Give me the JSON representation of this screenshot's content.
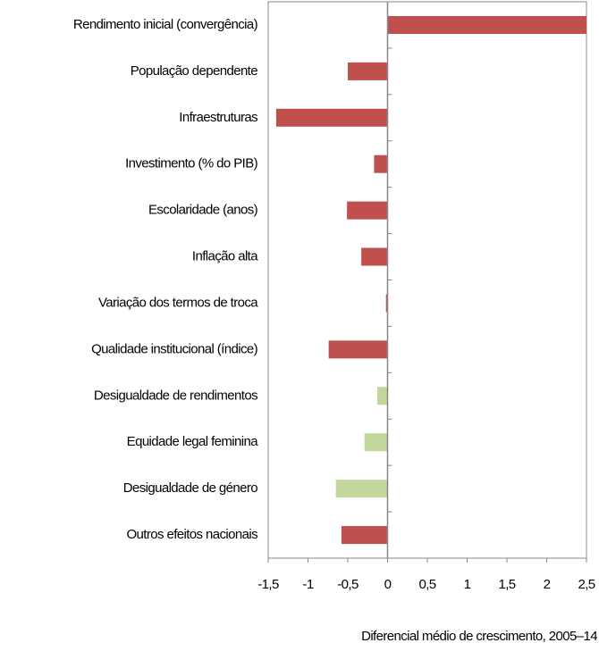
{
  "chart_data": {
    "type": "barh",
    "categories": [
      "Rendimento inicial (convergência)",
      "População dependente",
      "Infraestruturas",
      "Investimento (% do PIB)",
      "Escolaridade (anos)",
      "Inflação alta",
      "Variação dos termos de troca",
      "Qualidade institucional (índice)",
      "Desigualdade de rendimentos",
      "Equidade legal feminina",
      "Desigualdade de género",
      "Outros efeitos nacionais"
    ],
    "values": [
      2.5,
      -0.5,
      -1.4,
      -0.17,
      -0.51,
      -0.33,
      -0.02,
      -0.74,
      -0.13,
      -0.29,
      -0.65,
      -0.58
    ],
    "colors": [
      "#c0504d",
      "#c0504d",
      "#c0504d",
      "#c0504d",
      "#c0504d",
      "#c0504d",
      "#c0504d",
      "#c0504d",
      "#c3d69b",
      "#c3d69b",
      "#c3d69b",
      "#c0504d"
    ],
    "xlabel": "Diferencial médio de crescimento, 2005–14",
    "xlim": [
      -1.5,
      2.5
    ],
    "xticks": [
      {
        "value": -1.5,
        "label": "-1,5"
      },
      -1,
      {
        "value": -0.5,
        "label": "-0,5"
      },
      0,
      {
        "value": 0.5,
        "label": "0,5"
      },
      1,
      {
        "value": 1.5,
        "label": "1,5"
      },
      2,
      {
        "value": 2.5,
        "label": "2,5"
      }
    ]
  }
}
